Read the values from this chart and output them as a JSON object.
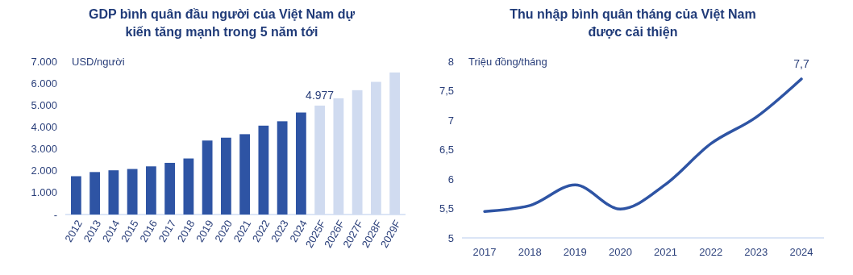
{
  "chart_data": [
    {
      "type": "bar",
      "title": "GDP bình quân đầu người của Việt Nam dự kiến tăng mạnh trong 5 năm tới",
      "ylabel": "USD/người",
      "categories": [
        "2012",
        "2013",
        "2014",
        "2015",
        "2016",
        "2017",
        "2018",
        "2019",
        "2020",
        "2021",
        "2022",
        "2023",
        "2024",
        "2025F",
        "2026F",
        "2027F",
        "2028F",
        "2029F"
      ],
      "values": [
        1750,
        1940,
        2020,
        2080,
        2200,
        2360,
        2560,
        3380,
        3510,
        3670,
        4060,
        4260,
        4660,
        4977,
        5310,
        5680,
        6060,
        6490
      ],
      "colors": [
        "#2e54a4",
        "#2e54a4",
        "#2e54a4",
        "#2e54a4",
        "#2e54a4",
        "#2e54a4",
        "#2e54a4",
        "#2e54a4",
        "#2e54a4",
        "#2e54a4",
        "#2e54a4",
        "#2e54a4",
        "#2e54a4",
        "#d0dbf0",
        "#d0dbf0",
        "#d0dbf0",
        "#d0dbf0",
        "#d0dbf0"
      ],
      "value_labels": [
        null,
        null,
        null,
        null,
        null,
        null,
        null,
        null,
        null,
        null,
        null,
        null,
        null,
        "4.977",
        null,
        null,
        null,
        null
      ],
      "ylim": [
        0,
        7000
      ],
      "yticks": [
        {
          "value": 0,
          "label": "-"
        },
        {
          "value": 1000,
          "label": "1.000"
        },
        {
          "value": 2000,
          "label": "2.000"
        },
        {
          "value": 3000,
          "label": "3.000"
        },
        {
          "value": 4000,
          "label": "4.000"
        },
        {
          "value": 5000,
          "label": "5.000"
        },
        {
          "value": 6000,
          "label": "6.000"
        },
        {
          "value": 7000,
          "label": "7.000"
        }
      ],
      "grid": false
    },
    {
      "type": "line",
      "title": "Thu nhập bình quân tháng của Việt Nam được cải thiện",
      "ylabel": "Triệu đồng/tháng",
      "categories": [
        "2017",
        "2018",
        "2019",
        "2020",
        "2021",
        "2022",
        "2023",
        "2024"
      ],
      "series": [
        {
          "color": "#2e54a4",
          "values": [
            5.45,
            5.55,
            5.9,
            5.49,
            5.91,
            6.6,
            7.05,
            7.7
          ],
          "value_labels": [
            null,
            null,
            null,
            null,
            null,
            null,
            null,
            "7,7"
          ]
        }
      ],
      "ylim": [
        5,
        8
      ],
      "yticks": [
        5,
        {
          "value": 5.5,
          "label": "5,5"
        },
        6,
        {
          "value": 6.5,
          "label": "6,5"
        },
        7,
        {
          "value": 7.5,
          "label": "7,5"
        },
        8
      ],
      "grid": false,
      "marker": "none",
      "line_style": "solid"
    }
  ]
}
